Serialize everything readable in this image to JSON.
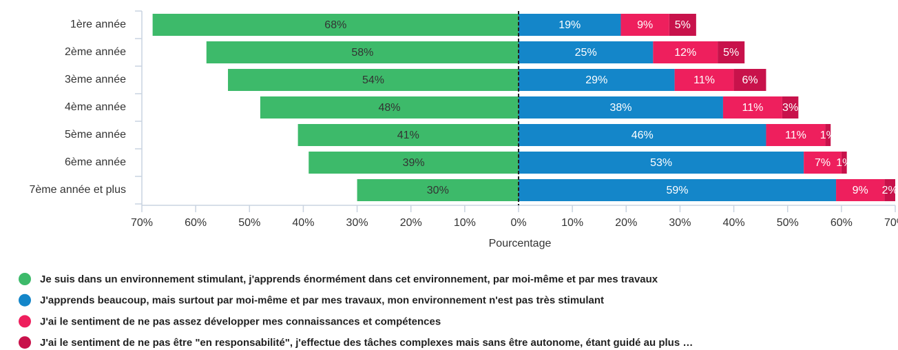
{
  "chart_data": {
    "type": "bar",
    "categories": [
      "1ère année",
      "2ème année",
      "3ème année",
      "4ème année",
      "5ème année",
      "6ème année",
      "7ème année et plus"
    ],
    "series": [
      {
        "name": "Je suis dans un environnement stimulant, j'apprends énormément dans cet environnement, par moi-même et par mes travaux",
        "color": "#3dba6a",
        "values": [
          -68,
          -58,
          -54,
          -48,
          -41,
          -39,
          -30
        ],
        "value_labels": [
          "68%",
          "58%",
          "54%",
          "48%",
          "41%",
          "39%",
          "30%"
        ]
      },
      {
        "name": "J'apprends beaucoup, mais surtout par moi-même et par mes travaux, mon environnement n'est pas très stimulant",
        "color": "#1486c9",
        "values": [
          19,
          25,
          29,
          38,
          46,
          53,
          59
        ],
        "value_labels": [
          "19%",
          "25%",
          "29%",
          "38%",
          "46%",
          "53%",
          "59%"
        ]
      },
      {
        "name": "J'ai le sentiment de ne pas assez développer mes connaissances et compétences",
        "color": "#ee1f5d",
        "values": [
          9,
          12,
          11,
          11,
          11,
          7,
          9
        ],
        "value_labels": [
          "9%",
          "12%",
          "11%",
          "11%",
          "11%",
          "7%",
          "9%"
        ]
      },
      {
        "name": "J'ai le sentiment de ne pas être \"en responsabilité\", j'effectue des tâches complexes mais sans être autonome, étant guidé au plus …",
        "color": "#c8124b",
        "values": [
          5,
          5,
          6,
          3,
          1,
          1,
          2
        ],
        "value_labels": [
          "5%",
          "5%",
          "6%",
          "3%",
          "1%",
          "1%",
          "2%"
        ]
      }
    ],
    "xlabel": "Pourcentage",
    "xlim": [
      -70,
      70
    ],
    "xticks": [
      {
        "value": -70,
        "label": "70%"
      },
      {
        "value": -60,
        "label": "60%"
      },
      {
        "value": -50,
        "label": "50%"
      },
      {
        "value": -40,
        "label": "40%"
      },
      {
        "value": -30,
        "label": "30%"
      },
      {
        "value": -20,
        "label": "20%"
      },
      {
        "value": -10,
        "label": "10%"
      },
      {
        "value": 0,
        "label": "0%"
      },
      {
        "value": 10,
        "label": "10%"
      },
      {
        "value": 20,
        "label": "20%"
      },
      {
        "value": 30,
        "label": "30%"
      },
      {
        "value": 40,
        "label": "40%"
      },
      {
        "value": 50,
        "label": "50%"
      },
      {
        "value": 60,
        "label": "60%"
      },
      {
        "value": 70,
        "label": "70%"
      }
    ],
    "legend": "bottom"
  }
}
